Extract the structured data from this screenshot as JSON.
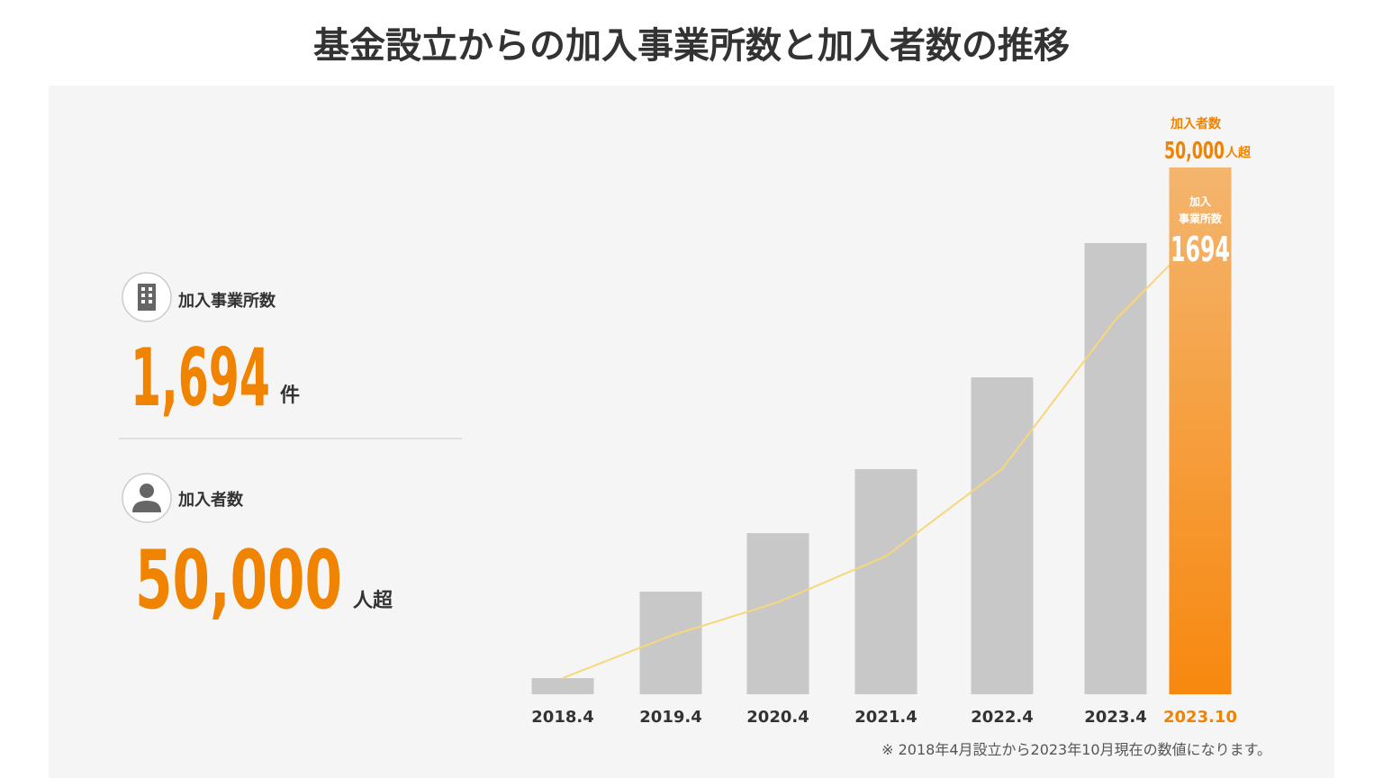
{
  "header": {
    "title": "基金設立からの加入事業所数と加入者数の推移"
  },
  "summary": {
    "items": [
      {
        "label": "加入事業所数",
        "value": "1,694",
        "unit": "件"
      },
      {
        "label": "加入者数",
        "value": "50,000",
        "unit": "人超"
      }
    ]
  },
  "chart_data": {
    "type": "bar",
    "categories": [
      "2018.4",
      "2019.4",
      "2020.4",
      "2021.4",
      "2022.4",
      "2023.4",
      "2023.10"
    ],
    "series": [
      {
        "name": "加入事業所数",
        "type": "bar",
        "color": "#c8c8c8",
        "highlight_gradient": [
          "#f4b56e",
          "#f7880f"
        ],
        "values": [
          52,
          330,
          518,
          724,
          1019,
          1451,
          1694
        ]
      },
      {
        "name": "加入者数",
        "type": "line",
        "color": "#f7d77a",
        "values": [
          1760,
          6360,
          10000,
          15000,
          24500,
          40700,
          50000
        ],
        "value_labels": [
          null,
          null,
          null,
          null,
          null,
          null,
          "50,000"
        ]
      }
    ],
    "highlight_color": "#f08300",
    "annotations": {
      "bar_caption": [
        "加入",
        "事業所数"
      ],
      "line_caption": "加入者数",
      "line_unit": "人超"
    },
    "footnote": "※ 2018年4月設立から2023年10月現在の数値になります。"
  }
}
